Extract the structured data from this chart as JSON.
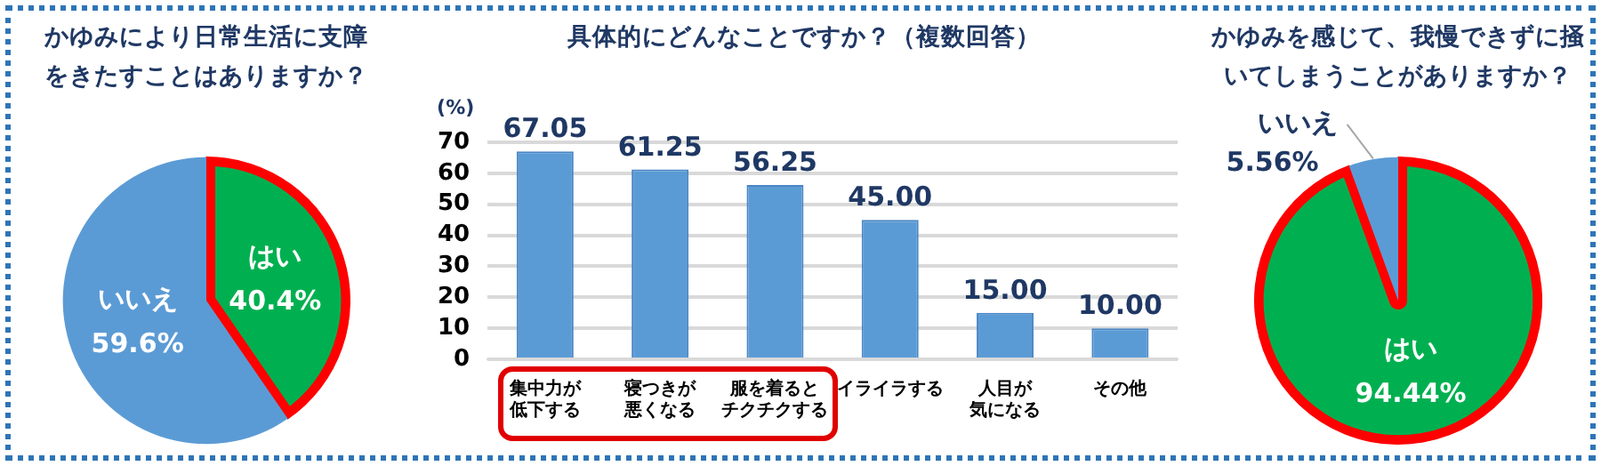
{
  "chart_data": [
    {
      "type": "pie",
      "title": "かゆみにより日常生活に支障をきたすことはありますか？",
      "categories": [
        "はい",
        "いいえ"
      ],
      "values": [
        40.4,
        59.6
      ],
      "colors": [
        "#00b050",
        "#5b9bd5"
      ],
      "value_labels": [
        "40.4%",
        "59.6%"
      ]
    },
    {
      "type": "bar",
      "title": "具体的にどんなことですか？（複数回答）",
      "ylabel": "(%)",
      "categories": [
        "集中力が低下する",
        "寝つきが悪くなる",
        "服を着るとチクチクする",
        "イライラする",
        "人目が気になる",
        "その他"
      ],
      "values": [
        67.05,
        61.25,
        56.25,
        45,
        15,
        10
      ],
      "color": "#5b9bd5",
      "value_labels": [
        "67.05",
        "61.25",
        "56.25",
        "45.00",
        "15.00",
        "10.00"
      ],
      "ylim": [
        0,
        70
      ],
      "yticks": [
        0,
        10,
        20,
        30,
        40,
        50,
        60,
        70
      ],
      "grid": "y"
    },
    {
      "type": "pie",
      "title": "かゆみを感じて、我慢できずに掻いてしまうことがありますか？",
      "categories": [
        "はい",
        "いいえ"
      ],
      "values": [
        94.44,
        5.56
      ],
      "colors": [
        "#00b050",
        "#5b9bd5"
      ],
      "value_labels": [
        "94.44%",
        "5.56%"
      ]
    }
  ]
}
